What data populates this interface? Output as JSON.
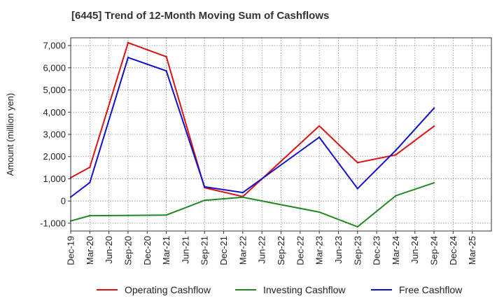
{
  "chart_data": {
    "type": "line",
    "title": "[6445]  Trend of 12-Month Moving Sum of Cashflows",
    "xlabel": "",
    "ylabel": "Amount (million yen)",
    "x": [
      "Dec-19",
      "Mar-20",
      "Jun-20",
      "Sep-20",
      "Dec-20",
      "Mar-21",
      "Jun-21",
      "Sep-21",
      "Dec-21",
      "Mar-22",
      "Jun-22",
      "Sep-22",
      "Dec-22",
      "Mar-23",
      "Jun-23",
      "Sep-23",
      "Dec-23",
      "Mar-24",
      "Jun-24",
      "Sep-24",
      "Dec-24",
      "Mar-25"
    ],
    "ylim": [
      -1350,
      7350
    ],
    "yticks": [
      -1000,
      0,
      1000,
      2000,
      3000,
      4000,
      5000,
      6000,
      7000
    ],
    "ytick_labels": [
      "-1,000",
      "0",
      "1,000",
      "2,000",
      "3,000",
      "4,000",
      "5,000",
      "6,000",
      "7,000"
    ],
    "grid": true,
    "legend_position": "bottom",
    "series": [
      {
        "name": "Operating Cashflow",
        "color": "#dd1111",
        "values": [
          1050,
          1520,
          null,
          7130,
          null,
          6500,
          null,
          600,
          null,
          200,
          null,
          null,
          null,
          3380,
          null,
          1730,
          null,
          2080,
          null,
          3370,
          null,
          null
        ]
      },
      {
        "name": "Investing Cashflow",
        "color": "#228822",
        "values": [
          -900,
          -660,
          null,
          -650,
          null,
          -630,
          null,
          30,
          null,
          170,
          null,
          null,
          null,
          -500,
          null,
          -1160,
          null,
          240,
          null,
          820,
          null,
          null
        ]
      },
      {
        "name": "Free Cashflow",
        "color": "#1111cc",
        "values": [
          180,
          830,
          null,
          6460,
          null,
          5860,
          null,
          640,
          null,
          380,
          null,
          null,
          null,
          2870,
          null,
          560,
          null,
          2280,
          null,
          4180,
          null,
          null
        ]
      }
    ]
  }
}
